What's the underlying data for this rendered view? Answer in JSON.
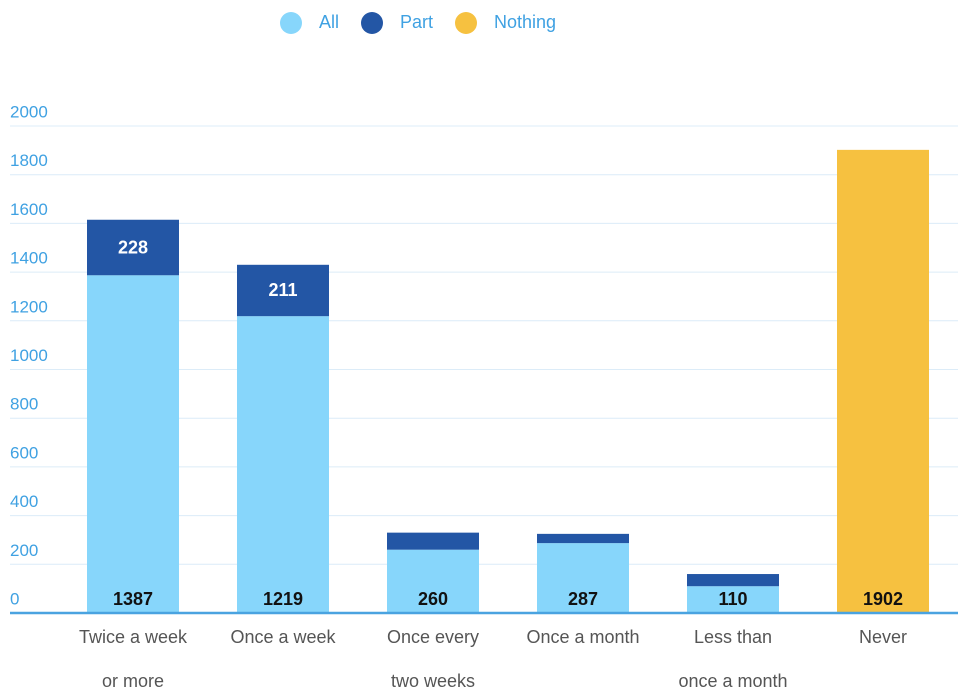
{
  "chart_data": {
    "type": "stacked_bar",
    "categories": [
      "Twice a week\nor more",
      "Once a week",
      "Once every\ntwo weeks",
      "Once a month",
      "Less than\nonce a month",
      "Never"
    ],
    "series": [
      {
        "name": "All",
        "color": "#87d6fb",
        "values": [
          1387,
          1219,
          260,
          287,
          110,
          null
        ],
        "value_labels": [
          "1387",
          "1219",
          "260",
          "287",
          "110",
          null
        ]
      },
      {
        "name": "Part",
        "color": "#2356a5",
        "values": [
          228,
          211,
          70,
          38,
          50,
          null
        ],
        "value_labels": [
          "228",
          "211",
          null,
          null,
          null,
          null
        ]
      },
      {
        "name": "Nothing",
        "color": "#f6c140",
        "values": [
          null,
          null,
          null,
          null,
          null,
          1902
        ],
        "value_labels": [
          null,
          null,
          null,
          null,
          null,
          "1902"
        ]
      }
    ],
    "ylim": [
      0,
      2000
    ],
    "yticks": [
      0,
      200,
      400,
      600,
      800,
      1000,
      1200,
      1400,
      1600,
      1800,
      2000
    ],
    "grid": true,
    "legend": "top"
  }
}
